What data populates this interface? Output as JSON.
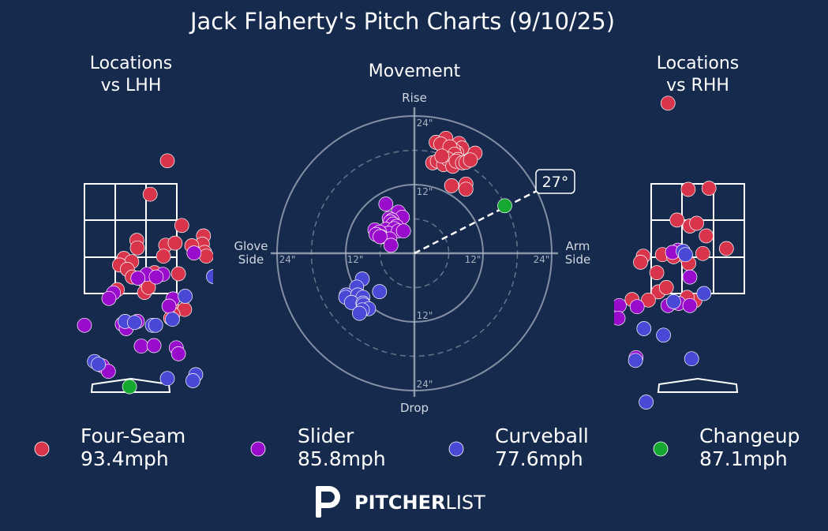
{
  "title": "Jack Flaherty's Pitch Charts (9/10/25)",
  "colors": {
    "background": "#152a4c",
    "four_seam": "#d8344b",
    "slider": "#9a0ccc",
    "curveball": "#4a48d6",
    "changeup": "#16a831",
    "grid": "#a9b2c1"
  },
  "panels": {
    "lhh_title": [
      "Locations",
      "vs LHH"
    ],
    "rhh_title": [
      "Locations",
      "vs RHH"
    ],
    "movement_title": "Movement"
  },
  "movement_axes": {
    "top": "Rise",
    "bottom": "Drop",
    "left": [
      "Glove",
      "Side"
    ],
    "right": [
      "Arm",
      "Side"
    ],
    "ticks": [
      "24\"",
      "12\"",
      "12\"",
      "24\"",
      "24\"",
      "12\"",
      "12\"",
      "24\""
    ],
    "arm_angle": "27°"
  },
  "legend": [
    {
      "name": "Four-Seam",
      "speed": "93.4mph"
    },
    {
      "name": "Slider",
      "speed": "85.8mph"
    },
    {
      "name": "Curveball",
      "speed": "77.6mph"
    },
    {
      "name": "Changeup",
      "speed": "87.1mph"
    }
  ],
  "logo": {
    "text_bold": "PITCHER",
    "text_light": "LIST"
  },
  "chart_data": [
    {
      "type": "scatter",
      "name": "Locations vs LHH",
      "xlim": [
        -2,
        2
      ],
      "ylim": [
        -0.55,
        5
      ],
      "strike_zone": {
        "x": [
          -0.83,
          0.83
        ],
        "z": [
          1.5,
          3.5
        ]
      },
      "series": [
        {
          "name": "Four-Seam",
          "points": [
            [
              0.66,
              3.92
            ],
            [
              0.35,
              3.31
            ],
            [
              0.92,
              2.74
            ],
            [
              0.11,
              2.47
            ],
            [
              0.12,
              2.33
            ],
            [
              0.63,
              2.38
            ],
            [
              0.8,
              2.42
            ],
            [
              1.31,
              2.55
            ],
            [
              1.29,
              2.4
            ],
            [
              1.33,
              2.25
            ],
            [
              1.36,
              2.18
            ],
            [
              1.1,
              2.37
            ],
            [
              -0.12,
              2.14
            ],
            [
              0.02,
              2.08
            ],
            [
              0.59,
              2.18
            ],
            [
              -0.2,
              2.02
            ],
            [
              -0.06,
              1.94
            ],
            [
              0.43,
              1.88
            ],
            [
              0.86,
              1.86
            ],
            [
              0.03,
              1.8
            ],
            [
              0.26,
              1.72
            ],
            [
              -0.24,
              1.57
            ],
            [
              0.25,
              1.52
            ],
            [
              0.32,
              1.61
            ],
            [
              0.73,
              1.31
            ],
            [
              0.97,
              1.21
            ],
            [
              0.76,
              1.12
            ],
            [
              0.72,
              1.05
            ]
          ]
        },
        {
          "name": "Slider",
          "points": [
            [
              1.14,
              2.24
            ],
            [
              0.29,
              1.85
            ],
            [
              0.58,
              1.85
            ],
            [
              0.13,
              1.78
            ],
            [
              0.46,
              1.8
            ],
            [
              -0.31,
              1.51
            ],
            [
              -0.39,
              1.41
            ],
            [
              0.76,
              1.4
            ],
            [
              0.69,
              1.27
            ],
            [
              0.12,
              0.99
            ],
            [
              -0.15,
              0.94
            ],
            [
              -0.83,
              0.92
            ],
            [
              -0.08,
              0.86
            ],
            [
              0.19,
              0.54
            ],
            [
              0.42,
              0.55
            ],
            [
              0.82,
              0.51
            ],
            [
              0.86,
              0.4
            ],
            [
              -0.51,
              0.18
            ],
            [
              -0.4,
              0.08
            ]
          ]
        },
        {
          "name": "Curveball",
          "points": [
            [
              1.49,
              1.81
            ],
            [
              0.98,
              1.45
            ],
            [
              0.75,
              1.03
            ],
            [
              -0.1,
              0.99
            ],
            [
              0.07,
              0.97
            ],
            [
              0.39,
              0.92
            ],
            [
              0.45,
              0.92
            ],
            [
              -0.65,
              0.26
            ],
            [
              -0.58,
              0.21
            ],
            [
              1.17,
              0.02
            ],
            [
              0.66,
              -0.05
            ],
            [
              1.12,
              -0.09
            ]
          ]
        },
        {
          "name": "Changeup",
          "points": [
            [
              -0.02,
              -0.2
            ]
          ]
        }
      ]
    },
    {
      "type": "scatter",
      "name": "Movement",
      "xlabel": "Arm Side / Glove Side (in)",
      "ylabel": "Rise / Drop (in)",
      "xlim": [
        -24,
        24
      ],
      "ylim": [
        -24,
        24
      ],
      "rings": [
        6,
        12,
        18,
        24
      ],
      "arm_angle": 27,
      "series": [
        {
          "name": "Four-Seam",
          "points": [
            [
              3.8,
              19.4
            ],
            [
              5.5,
              20.1
            ],
            [
              7.8,
              19.2
            ],
            [
              8.3,
              18.4
            ],
            [
              7.4,
              17.6
            ],
            [
              6.8,
              18.1
            ],
            [
              5.3,
              18.4
            ],
            [
              4.6,
              19.1
            ],
            [
              6.2,
              18.6
            ],
            [
              7.0,
              17.3
            ],
            [
              7.6,
              16.4
            ],
            [
              10.6,
              17.5
            ],
            [
              3.2,
              15.8
            ],
            [
              4.0,
              16.1
            ],
            [
              5.1,
              15.5
            ],
            [
              5.8,
              16.5
            ],
            [
              6.7,
              15.2
            ],
            [
              7.3,
              16.1
            ],
            [
              8.4,
              15.8
            ],
            [
              9.0,
              15.9
            ],
            [
              9.8,
              16.3
            ],
            [
              4.8,
              17.0
            ],
            [
              6.5,
              11.8
            ],
            [
              9.0,
              12.1
            ],
            [
              9.0,
              11.2
            ]
          ]
        },
        {
          "name": "Slider",
          "points": [
            [
              -5.0,
              8.6
            ],
            [
              -2.8,
              7.2
            ],
            [
              -4.4,
              6.1
            ],
            [
              -2.1,
              6.3
            ],
            [
              -3.9,
              5.8
            ],
            [
              -4.2,
              5.5
            ],
            [
              -3.7,
              5.1
            ],
            [
              -3.1,
              4.7
            ],
            [
              -5.0,
              4.2
            ],
            [
              -3.5,
              4.3
            ],
            [
              -6.9,
              4.1
            ],
            [
              -4.5,
              3.5
            ],
            [
              -2.8,
              3.9
            ],
            [
              -1.9,
              3.9
            ],
            [
              -6.1,
              3.7
            ],
            [
              -6.7,
              3.3
            ],
            [
              -5.8,
              2.9
            ],
            [
              -4.3,
              2.5
            ],
            [
              -6.0,
              2.9
            ],
            [
              -4.1,
              1.4
            ]
          ]
        },
        {
          "name": "Curveball",
          "points": [
            [
              -9.1,
              -4.5
            ],
            [
              -10.1,
              -5.9
            ],
            [
              -6.1,
              -6.7
            ],
            [
              -11.9,
              -7.3
            ],
            [
              -12.0,
              -7.7
            ],
            [
              -9.9,
              -7.3
            ],
            [
              -9.0,
              -7.7
            ],
            [
              -11.0,
              -8.6
            ],
            [
              -9.0,
              -8.7
            ],
            [
              -8.9,
              -9.0
            ],
            [
              -8.0,
              -9.7
            ],
            [
              -9.1,
              -9.9
            ],
            [
              -9.6,
              -10.5
            ]
          ]
        },
        {
          "name": "Changeup",
          "points": [
            [
              15.8,
              8.3
            ]
          ]
        }
      ]
    },
    {
      "type": "scatter",
      "name": "Locations vs RHH",
      "xlim": [
        -2,
        2
      ],
      "ylim": [
        -0.55,
        5
      ],
      "strike_zone": {
        "x": [
          -0.83,
          0.83
        ],
        "z": [
          1.5,
          3.5
        ]
      },
      "series": [
        {
          "name": "Four-Seam",
          "points": [
            [
              -0.53,
              4.97
            ],
            [
              -0.17,
              3.4
            ],
            [
              0.2,
              3.42
            ],
            [
              -0.37,
              2.84
            ],
            [
              -0.14,
              2.73
            ],
            [
              -0.02,
              2.78
            ],
            [
              0.15,
              2.55
            ],
            [
              0.51,
              2.32
            ],
            [
              0.09,
              2.23
            ],
            [
              -0.97,
              2.18
            ],
            [
              -0.22,
              2.17
            ],
            [
              -0.63,
              2.21
            ],
            [
              -0.43,
              2.17
            ],
            [
              -0.16,
              2.05
            ],
            [
              -1.02,
              2.07
            ],
            [
              -0.73,
              1.88
            ],
            [
              -0.7,
              1.53
            ],
            [
              -0.56,
              1.61
            ],
            [
              -1.17,
              1.39
            ],
            [
              -0.88,
              1.38
            ],
            [
              -0.05,
              1.37
            ],
            [
              -0.19,
              1.43
            ]
          ]
        },
        {
          "name": "Slider",
          "points": [
            [
              -0.35,
              2.29
            ],
            [
              -0.45,
              2.25
            ],
            [
              -0.14,
              1.8
            ],
            [
              -1.4,
              1.28
            ],
            [
              -0.53,
              1.28
            ],
            [
              -1.08,
              1.26
            ],
            [
              -0.34,
              1.32
            ],
            [
              -0.14,
              1.28
            ],
            [
              -1.42,
              1.05
            ],
            [
              -1.1,
              0.33
            ]
          ]
        },
        {
          "name": "Curveball",
          "points": [
            [
              -0.26,
              2.27
            ],
            [
              -0.22,
              2.21
            ],
            [
              0.11,
              1.5
            ],
            [
              -0.43,
              1.35
            ],
            [
              -0.96,
              0.86
            ],
            [
              -0.61,
              0.74
            ],
            [
              -0.11,
              0.31
            ],
            [
              -1.11,
              0.28
            ],
            [
              -0.92,
              -0.48
            ]
          ]
        },
        {
          "name": "Changeup",
          "points": []
        }
      ]
    }
  ]
}
